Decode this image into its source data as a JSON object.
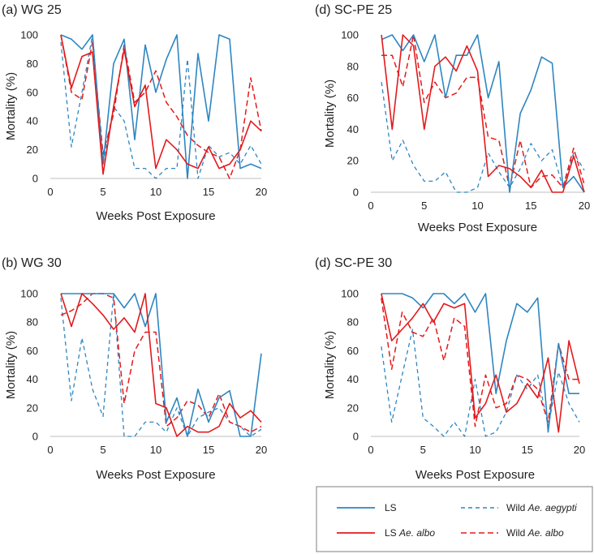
{
  "colors": {
    "ls": "#2e86c1",
    "albo": "#e31a1c",
    "axis": "#bfbfbf",
    "legend_border": "#7f7f7f"
  },
  "legend": {
    "ls": "LS",
    "ls_albo_prefix": "LS ",
    "ls_albo_italic": "Ae. albo",
    "wild_aegypti_prefix": "Wild ",
    "wild_aegypti_italic": "Ae. aegypti",
    "wild_albo_prefix": "Wild ",
    "wild_albo_italic": "Ae. albo"
  },
  "chart_data": [
    {
      "type": "line",
      "id": "a",
      "title": "(a) WG 25",
      "xlabel": "Weeks Post Exposure",
      "ylabel": "Mortality (%)",
      "xlim": [
        0,
        20
      ],
      "ylim": [
        0,
        100
      ],
      "xticks": [
        0,
        5,
        10,
        15,
        20
      ],
      "yticks": [
        0,
        20,
        40,
        60,
        80,
        100
      ],
      "x": [
        1,
        2,
        3,
        4,
        5,
        6,
        7,
        8,
        9,
        10,
        11,
        12,
        13,
        14,
        15,
        16,
        17,
        18,
        19,
        20
      ],
      "series": [
        {
          "name": "LS",
          "values": [
            100,
            97,
            90,
            100,
            10,
            80,
            97,
            27,
            93,
            60,
            83,
            100,
            0,
            87,
            40,
            100,
            97,
            7,
            10,
            7
          ]
        },
        {
          "name": "LS Ae. albo",
          "values": [
            100,
            63,
            85,
            88,
            3,
            50,
            90,
            50,
            65,
            7,
            27,
            20,
            10,
            7,
            22,
            7,
            10,
            20,
            40,
            33
          ]
        },
        {
          "name": "Wild Ae. aegypti",
          "values": [
            95,
            22,
            60,
            100,
            10,
            50,
            40,
            7,
            7,
            0,
            7,
            7,
            83,
            0,
            23,
            15,
            18,
            10,
            23,
            10
          ]
        },
        {
          "name": "Wild Ae. albo",
          "values": [
            100,
            60,
            55,
            95,
            17,
            45,
            93,
            53,
            60,
            75,
            53,
            43,
            30,
            23,
            18,
            15,
            0,
            20,
            70,
            33
          ]
        }
      ]
    },
    {
      "type": "line",
      "id": "d",
      "title": "(d) SC-PE 25",
      "xlabel": "Weeks Post Exposure",
      "ylabel": "Mortality (%)",
      "xlim": [
        0,
        20
      ],
      "ylim": [
        0,
        100
      ],
      "xticks": [
        0,
        5,
        10,
        15,
        20
      ],
      "yticks": [
        0,
        20,
        40,
        60,
        80,
        100
      ],
      "x": [
        1,
        2,
        3,
        4,
        5,
        6,
        7,
        8,
        9,
        10,
        11,
        12,
        13,
        14,
        15,
        16,
        17,
        18,
        19,
        20
      ],
      "series": [
        {
          "name": "LS",
          "values": [
            97,
            100,
            90,
            100,
            83,
            100,
            60,
            87,
            87,
            100,
            60,
            83,
            0,
            50,
            65,
            86,
            82,
            3,
            10,
            0
          ]
        },
        {
          "name": "LS Ae. albo",
          "values": [
            100,
            40,
            100,
            93,
            40,
            80,
            86,
            77,
            93,
            77,
            10,
            17,
            15,
            10,
            3,
            14,
            0,
            0,
            23,
            0
          ]
        },
        {
          "name": "Wild Ae. aegypti",
          "values": [
            70,
            20,
            33,
            17,
            7,
            7,
            13,
            0,
            0,
            3,
            25,
            13,
            3,
            15,
            31,
            20,
            27,
            3,
            25,
            14
          ]
        },
        {
          "name": "Wild Ae. albo",
          "values": [
            87,
            87,
            67,
            100,
            57,
            70,
            60,
            63,
            73,
            73,
            35,
            33,
            3,
            33,
            3,
            10,
            11,
            3,
            28,
            5
          ]
        }
      ]
    },
    {
      "type": "line",
      "id": "b",
      "title": "(b) WG 30",
      "xlabel": "Weeks Post Exposure",
      "ylabel": "Mortality (%)",
      "xlim": [
        0,
        20
      ],
      "ylim": [
        0,
        100
      ],
      "xticks": [
        0,
        5,
        10,
        15,
        20
      ],
      "yticks": [
        0,
        20,
        40,
        60,
        80,
        100
      ],
      "x": [
        1,
        2,
        3,
        4,
        5,
        6,
        7,
        8,
        9,
        10,
        11,
        12,
        13,
        14,
        15,
        16,
        17,
        18,
        19,
        20
      ],
      "series": [
        {
          "name": "LS",
          "values": [
            100,
            100,
            100,
            100,
            100,
            100,
            90,
            100,
            77,
            100,
            10,
            27,
            0,
            33,
            10,
            27,
            32,
            0,
            0,
            58
          ]
        },
        {
          "name": "LS Ae. albo",
          "values": [
            100,
            77,
            100,
            93,
            85,
            75,
            83,
            73,
            100,
            23,
            20,
            0,
            7,
            3,
            3,
            7,
            23,
            13,
            18,
            10
          ]
        },
        {
          "name": "Wild Ae. aegypti",
          "values": [
            97,
            25,
            69,
            33,
            14,
            100,
            0,
            0,
            10,
            10,
            3,
            20,
            0,
            13,
            17,
            20,
            10,
            7,
            0,
            5
          ]
        },
        {
          "name": "Wild Ae. albo",
          "values": [
            85,
            88,
            93,
            100,
            100,
            97,
            23,
            60,
            73,
            73,
            7,
            13,
            25,
            22,
            13,
            30,
            10,
            7,
            3,
            7
          ]
        }
      ]
    },
    {
      "type": "line",
      "id": "d2",
      "title": "(d) SC-PE 30",
      "xlabel": "Weeks Post Exposure",
      "ylabel": "Mortality (%)",
      "xlim": [
        0,
        20
      ],
      "ylim": [
        0,
        100
      ],
      "xticks": [
        0,
        5,
        10,
        15,
        20
      ],
      "yticks": [
        0,
        20,
        40,
        60,
        80,
        100
      ],
      "x": [
        1,
        2,
        3,
        4,
        5,
        6,
        7,
        8,
        9,
        10,
        11,
        12,
        13,
        14,
        15,
        16,
        17,
        18,
        19,
        20
      ],
      "series": [
        {
          "name": "LS",
          "values": [
            100,
            100,
            100,
            97,
            90,
            100,
            100,
            93,
            100,
            87,
            100,
            30,
            67,
            93,
            87,
            97,
            3,
            65,
            30,
            30
          ]
        },
        {
          "name": "LS Ae. albo",
          "values": [
            100,
            67,
            75,
            83,
            93,
            80,
            93,
            90,
            93,
            13,
            23,
            43,
            17,
            23,
            37,
            27,
            55,
            3,
            67,
            37
          ]
        },
        {
          "name": "Wild Ae. aegypti",
          "values": [
            63,
            10,
            43,
            75,
            13,
            7,
            0,
            10,
            0,
            40,
            0,
            3,
            17,
            43,
            33,
            43,
            7,
            45,
            23,
            10
          ]
        },
        {
          "name": "Wild Ae. albo",
          "values": [
            97,
            47,
            87,
            73,
            70,
            83,
            53,
            83,
            77,
            7,
            43,
            20,
            23,
            43,
            40,
            33,
            10,
            65,
            40,
            40
          ]
        }
      ]
    }
  ]
}
